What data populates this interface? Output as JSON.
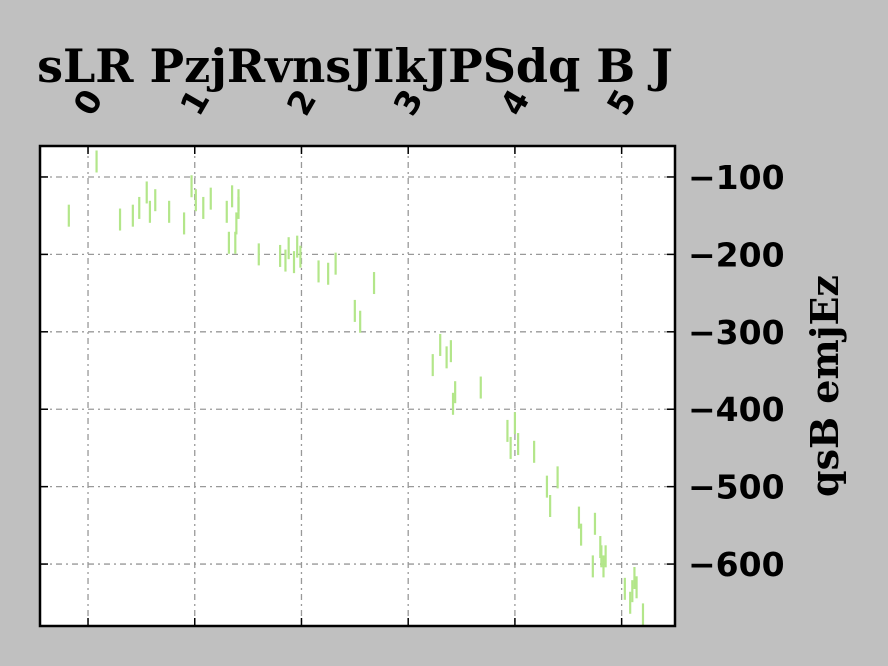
{
  "chart_data": {
    "type": "scatter",
    "title": "sLR PzjRvnsJIkJPSdq B J",
    "xlabel": "",
    "ylabel": "qsB emjEz",
    "xlim": [
      -0.45,
      5.5
    ],
    "ylim": [
      -680,
      -60
    ],
    "x_ticks": [
      0,
      1,
      2,
      3,
      4,
      5
    ],
    "y_ticks": [
      -100,
      -200,
      -300,
      -400,
      -500,
      -600
    ],
    "x_tick_labels": [
      "0",
      "1",
      "2",
      "3",
      "4",
      "5"
    ],
    "y_tick_labels": [
      "−100",
      "−200",
      "−300",
      "−400",
      "−500",
      "−600"
    ],
    "x_axis_position": "top",
    "y_axis_position": "right",
    "grid": true,
    "marker": "vertical-line",
    "series": [
      {
        "name": "",
        "color": "#b3e68a",
        "x": [
          -0.18,
          0.08,
          0.3,
          0.42,
          0.48,
          0.55,
          0.58,
          0.63,
          0.76,
          0.9,
          0.97,
          1.01,
          1.08,
          1.15,
          1.3,
          1.32,
          1.35,
          1.38,
          1.39,
          1.41,
          1.41,
          1.6,
          1.8,
          1.85,
          1.88,
          1.93,
          1.96,
          1.99,
          2.16,
          2.25,
          2.32,
          2.5,
          2.55,
          2.68,
          3.23,
          3.3,
          3.36,
          3.4,
          3.42,
          3.44,
          3.68,
          3.93,
          3.96,
          4.0,
          4.03,
          4.18,
          4.3,
          4.33,
          4.4,
          4.6,
          4.62,
          4.73,
          4.75,
          4.8,
          4.81,
          4.83,
          4.85,
          5.03,
          5.08,
          5.1,
          5.12,
          5.14,
          5.2
        ],
        "y": [
          -150,
          -80,
          -155,
          -150,
          -140,
          -120,
          -145,
          -130,
          -145,
          -160,
          -112,
          -130,
          -140,
          -128,
          -145,
          -185,
          -125,
          -185,
          -160,
          -130,
          -140,
          -200,
          -202,
          -208,
          -192,
          -210,
          -190,
          -203,
          -222,
          -225,
          -212,
          -273,
          -287,
          -237,
          -343,
          -317,
          -333,
          -325,
          -393,
          -378,
          -372,
          -428,
          -450,
          -418,
          -445,
          -455,
          -500,
          -525,
          -488,
          -540,
          -562,
          -603,
          -548,
          -578,
          -590,
          -603,
          -590,
          -632,
          -650,
          -635,
          -618,
          -630,
          -665
        ]
      }
    ]
  }
}
